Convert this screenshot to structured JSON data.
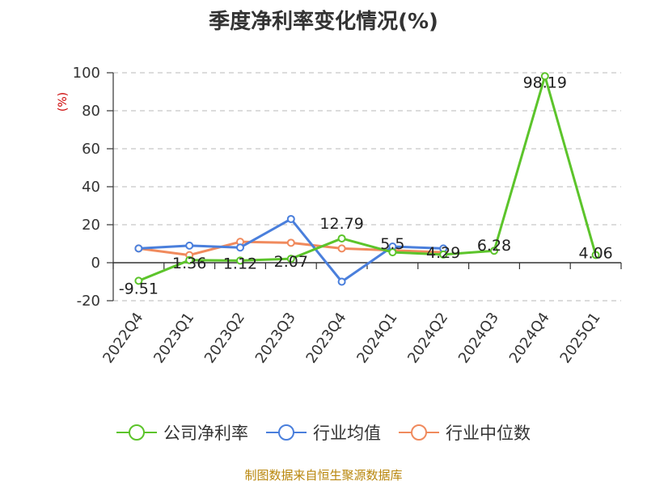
{
  "chart_data": {
    "type": "line",
    "title": "季度净利率变化情况(%)",
    "ylabel": "(%)",
    "xlabel": "",
    "categories": [
      "2022Q4",
      "2023Q1",
      "2023Q2",
      "2023Q3",
      "2023Q4",
      "2024Q1",
      "2024Q2",
      "2024Q3",
      "2024Q4",
      "2025Q1"
    ],
    "ylim": [
      -20,
      100
    ],
    "yticks": [
      -20,
      0,
      20,
      40,
      60,
      80,
      100
    ],
    "grid": true,
    "legend_position": "bottom",
    "series": [
      {
        "name": "公司净利率",
        "color": "#5cc42b",
        "values": [
          -9.51,
          1.36,
          1.12,
          2.07,
          12.79,
          5.5,
          4.29,
          6.28,
          98.19,
          4.06
        ],
        "labels": [
          "-9.51",
          "1.36",
          "1.12",
          "2.07",
          "12.79",
          "5.5",
          "4.29",
          "6.28",
          "98.19",
          "4.06"
        ]
      },
      {
        "name": "行业均值",
        "color": "#4a7fdc",
        "values": [
          7.5,
          9,
          8,
          23,
          -10,
          8.5,
          7.5,
          null,
          null,
          null
        ]
      },
      {
        "name": "行业中位数",
        "color": "#f08a5d",
        "values": [
          7.5,
          4,
          11,
          10.5,
          7.5,
          6.5,
          5.5,
          null,
          null,
          null
        ]
      }
    ]
  },
  "footer": "制图数据来自恒生聚源数据库"
}
